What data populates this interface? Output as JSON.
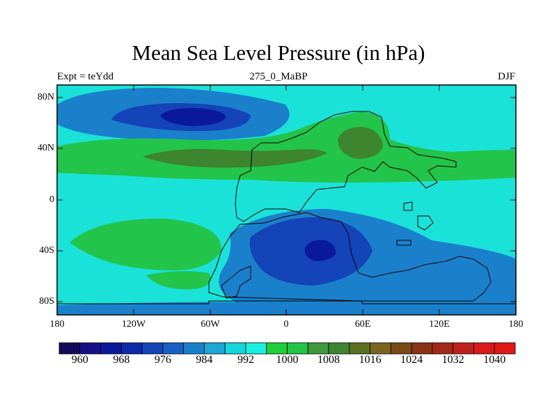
{
  "title": "Mean Sea Level Pressure (in hPa)",
  "subtitle_left": "Expt = teYdd",
  "subtitle_center": "275_0_MaBP",
  "subtitle_right": "DJF",
  "y_ticks": [
    "80N",
    "40N",
    "0",
    "40S",
    "80S"
  ],
  "x_ticks": [
    "180",
    "120W",
    "60W",
    "0",
    "60E",
    "120E",
    "180"
  ],
  "colorbar": {
    "labels": [
      "960",
      "968",
      "976",
      "984",
      "992",
      "1000",
      "1008",
      "1016",
      "1024",
      "1032",
      "1040"
    ],
    "colors": [
      "#140a5c",
      "#160f86",
      "#0a1a9a",
      "#0c2aa8",
      "#1444b8",
      "#1662c4",
      "#1a80cc",
      "#1ea8d4",
      "#14d6dc",
      "#1cf0e0",
      "#1ecf3a",
      "#22c44a",
      "#3e9a3c",
      "#3e8530",
      "#5a7022",
      "#7a6420",
      "#7a4a14",
      "#8a3214",
      "#a02a18",
      "#c0201c",
      "#d81a1a",
      "#e01818"
    ]
  },
  "map": {
    "lon_range": [
      -180,
      180
    ],
    "lat_range": [
      -90,
      90
    ],
    "background_color": "#1ae2d8",
    "region_colors": {
      "low_deep": "#0a1a9a",
      "low_mid": "#1444b8",
      "low_light": "#1a80cc",
      "cyan": "#1ae2d8",
      "green": "#22c44a",
      "olive": "#3e8530"
    }
  }
}
